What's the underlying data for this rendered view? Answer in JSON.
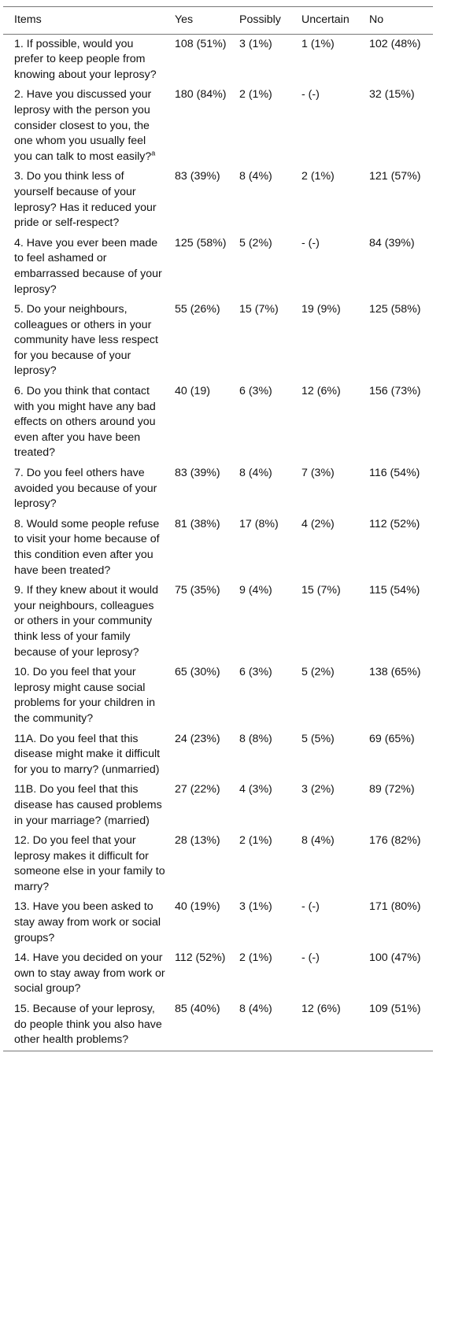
{
  "table": {
    "headers": [
      "Items",
      "Yes",
      "Possibly",
      "Uncertain",
      "No"
    ],
    "rows": [
      {
        "item": "1. If possible, would you prefer to keep people from knowing about your leprosy?",
        "yes": "108 (51%)",
        "possibly": "3 (1%)",
        "uncertain": "1 (1%)",
        "no": "102 (48%)"
      },
      {
        "item": "2. Have you discussed your leprosy with the person you consider closest to you, the one whom you usually feel you can talk to most easily?",
        "sup": "a",
        "yes": "180 (84%)",
        "possibly": "2 (1%)",
        "uncertain": "- (-)",
        "no": "32 (15%)"
      },
      {
        "item": "3. Do you think less of yourself because of your leprosy? Has it reduced your pride or self-respect?",
        "yes": "83 (39%)",
        "possibly": "8 (4%)",
        "uncertain": "2 (1%)",
        "no": "121 (57%)"
      },
      {
        "item": "4. Have you ever been made to feel ashamed or embarrassed because of your leprosy?",
        "yes": "125 (58%)",
        "possibly": "5 (2%)",
        "uncertain": "- (-)",
        "no": "84 (39%)"
      },
      {
        "item": "5. Do your neighbours, colleagues or others in your community have less respect for you because of your leprosy?",
        "yes": "55 (26%)",
        "possibly": "15 (7%)",
        "uncertain": "19 (9%)",
        "no": "125 (58%)"
      },
      {
        "item": "6. Do you think that contact with you might have any bad effects on others around you even after you have been treated?",
        "yes": "40 (19)",
        "possibly": "6 (3%)",
        "uncertain": "12 (6%)",
        "no": "156 (73%)"
      },
      {
        "item": "7. Do you feel others have avoided you because of your leprosy?",
        "yes": "83 (39%)",
        "possibly": "8 (4%)",
        "uncertain": "7 (3%)",
        "no": "116 (54%)"
      },
      {
        "item": "8. Would some people refuse to visit your home because of this condition even after you have been treated?",
        "yes": "81 (38%)",
        "possibly": "17 (8%)",
        "uncertain": "4 (2%)",
        "no": "112 (52%)"
      },
      {
        "item": "9. If they knew about it would your neighbours, colleagues or others in your community think less of your family because of your leprosy?",
        "yes": "75 (35%)",
        "possibly": "9 (4%)",
        "uncertain": "15 (7%)",
        "no": "115 (54%)"
      },
      {
        "item": "10. Do you feel that your leprosy might cause social problems for your children in the community?",
        "yes": "65 (30%)",
        "possibly": "6 (3%)",
        "uncertain": "5 (2%)",
        "no": "138 (65%)"
      },
      {
        "item": "11A. Do you feel that this disease might make it difficult for you to marry? (unmarried)",
        "yes": "24 (23%)",
        "possibly": "8 (8%)",
        "uncertain": "5 (5%)",
        "no": "69 (65%)"
      },
      {
        "item": "11B. Do you feel that this disease has caused problems in your marriage? (married)",
        "yes": "27 (22%)",
        "possibly": "4 (3%)",
        "uncertain": "3 (2%)",
        "no": "89 (72%)"
      },
      {
        "item": "12. Do you feel that your leprosy makes it difficult for someone else in your family to marry?",
        "yes": "28 (13%)",
        "possibly": "2 (1%)",
        "uncertain": "8 (4%)",
        "no": "176 (82%)"
      },
      {
        "item": "13. Have you been asked to stay away from work or social groups?",
        "yes": "40 (19%)",
        "possibly": "3 (1%)",
        "uncertain": "- (-)",
        "no": "171 (80%)"
      },
      {
        "item": "14. Have you decided on your own to stay away from work or social group?",
        "yes": "112 (52%)",
        "possibly": "2 (1%)",
        "uncertain": "- (-)",
        "no": "100 (47%)"
      },
      {
        "item": "15. Because of your leprosy, do people think you also have other health problems?",
        "yes": "85 (40%)",
        "possibly": "8 (4%)",
        "uncertain": "12 (6%)",
        "no": "109 (51%)"
      }
    ]
  }
}
